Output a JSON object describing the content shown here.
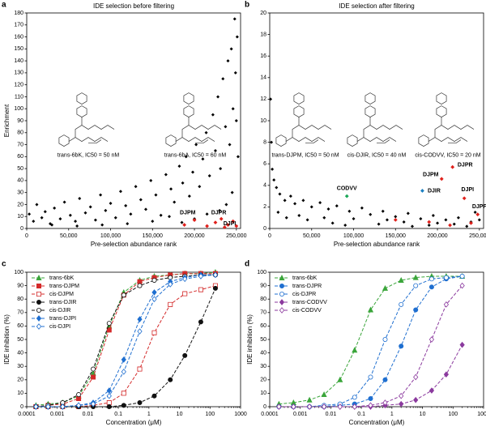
{
  "chart_data": [
    {
      "type": "scatter",
      "panel": "a",
      "title": "IDE selection before filtering",
      "xlabel": "Pre-selection abundance rank",
      "ylabel": "Enrichment",
      "xlim": [
        0,
        255000
      ],
      "ylim": [
        0,
        180
      ],
      "xticks": [
        0,
        {
          "value": 50000,
          "label": "50,000"
        },
        {
          "value": 100000,
          "label": "100,000"
        },
        {
          "value": 150000,
          "label": "150,000"
        },
        {
          "value": 200000,
          "label": "200,000"
        },
        {
          "value": 250000,
          "label": "250,000"
        }
      ],
      "yticks": [
        0,
        10,
        20,
        30,
        40,
        50,
        60,
        70,
        80,
        90,
        100,
        110,
        120,
        130,
        140,
        150,
        160,
        170,
        180
      ],
      "series": [
        {
          "color": "#000000",
          "x": [
            3000,
            8000,
            12000,
            18000,
            22000,
            28000,
            33000,
            40000,
            45000,
            52000,
            58000,
            63000,
            70000,
            76000,
            82000,
            88000,
            94000,
            100000,
            106000,
            112000,
            118000,
            124000,
            130000,
            136000,
            142000,
            148000,
            154000,
            160000,
            166000,
            172000,
            176000,
            182000,
            186000,
            190000,
            194000,
            198000,
            202000,
            206000,
            210000,
            214000,
            218000,
            222000,
            225000,
            228000,
            231000,
            234000,
            237000,
            240000,
            242000,
            244000,
            246000,
            248000,
            249000,
            250000,
            251000,
            252000,
            245000,
            238000,
            230000,
            215000,
            200000,
            185000,
            170000,
            150000,
            120000,
            90000,
            60000,
            30000
          ],
          "values": [
            12,
            6,
            20,
            9,
            14,
            4,
            17,
            8,
            22,
            11,
            6,
            25,
            13,
            18,
            7,
            28,
            15,
            21,
            9,
            31,
            19,
            12,
            35,
            24,
            16,
            40,
            28,
            11,
            45,
            33,
            22,
            52,
            38,
            60,
            27,
            47,
            70,
            35,
            58,
            80,
            44,
            95,
            65,
            110,
            50,
            125,
            85,
            140,
            70,
            150,
            100,
            175,
            130,
            90,
            160,
            60,
            30,
            20,
            15,
            12,
            8,
            5,
            10,
            6,
            4,
            3,
            2,
            3
          ]
        },
        {
          "color": "#e0201b",
          "x": [
            188000,
            200000,
            215000,
            225000,
            232000,
            240000,
            246000,
            250000,
            236000
          ],
          "values": [
            3,
            7,
            2,
            5,
            8,
            3,
            6,
            2,
            1
          ]
        }
      ],
      "annotations": [
        {
          "text": "DJPM",
          "x": 192000,
          "y": 13,
          "color": "#e0201b"
        },
        {
          "text": "DJPR",
          "x": 229000,
          "y": 13,
          "color": "#e0201b"
        },
        {
          "text": "DJPI",
          "x": 242000,
          "y": 4,
          "color": "#e0201b"
        }
      ],
      "compounds": [
        "trans-6bK, IC50 = 50 nM",
        "trans-6bA, IC50 = 60 nM"
      ]
    },
    {
      "type": "scatter",
      "panel": "b",
      "title": "IDE selection after filtering",
      "xlabel": "Pre-selection abundance rank",
      "ylabel": null,
      "xlim": [
        0,
        255000
      ],
      "ylim": [
        0,
        20
      ],
      "xticks": [
        0,
        {
          "value": 50000,
          "label": "50,000"
        },
        {
          "value": 100000,
          "label": "100,000"
        },
        {
          "value": 150000,
          "label": "150,000"
        },
        {
          "value": 200000,
          "label": "200,000"
        },
        {
          "value": 250000,
          "label": "250,000"
        }
      ],
      "yticks": [
        0,
        2,
        4,
        6,
        8,
        10,
        12,
        14,
        16,
        18,
        20
      ],
      "series": [
        {
          "color": "#000000",
          "x": [
            1000,
            2000,
            3000,
            5000,
            8000,
            12000,
            18000,
            25000,
            30000,
            40000,
            50000,
            60000,
            70000,
            80000,
            95000,
            110000,
            120000,
            135000,
            150000,
            165000,
            180000,
            195000,
            210000,
            225000,
            240000,
            250000,
            20000,
            45000,
            75000,
            100000,
            130000,
            160000,
            190000,
            220000,
            10000,
            35000,
            65000,
            90000,
            140000,
            170000,
            200000,
            235000,
            245000
          ],
          "values": [
            12,
            8,
            5.5,
            4.5,
            3.8,
            3.2,
            2.6,
            3.0,
            2.3,
            2.6,
            2.0,
            2.4,
            1.8,
            2.1,
            1.6,
            1.9,
            1.3,
            1.6,
            1.1,
            1.4,
            0.9,
            1.2,
            0.8,
            1.0,
            0.6,
            0.8,
            1.0,
            0.8,
            0.5,
            0.9,
            0.4,
            0.6,
            0.3,
            0.4,
            1.5,
            1.2,
            1.0,
            0.3,
            0.8,
            0.2,
            0.5,
            0.2,
            1.5
          ]
        },
        {
          "color": "#e0201b",
          "x": [
            205000,
            218000,
            232000,
            248000,
            150000,
            190000,
            215000,
            240000
          ],
          "values": [
            4.6,
            5.7,
            2.8,
            1.3,
            0.8,
            0.6,
            0.3,
            0.5
          ]
        },
        {
          "color": "#1aa657",
          "x": [
            92000
          ],
          "values": [
            3.0
          ]
        },
        {
          "color": "#1a7fc1",
          "x": [
            182000
          ],
          "values": [
            3.5
          ]
        }
      ],
      "annotations": [
        {
          "text": "CODVV",
          "x": 92000,
          "y": 3.7,
          "color": "#1aa657"
        },
        {
          "text": "DJIR",
          "x": 196000,
          "y": 3.5,
          "color": "#1a7fc1"
        },
        {
          "text": "DJPM",
          "x": 192000,
          "y": 5.0,
          "color": "#e0201b"
        },
        {
          "text": "DJPR",
          "x": 233000,
          "y": 5.9,
          "color": "#e0201b"
        },
        {
          "text": "DJPI",
          "x": 236000,
          "y": 3.6,
          "color": "#e0201b"
        },
        {
          "text": "DJPF",
          "x": 250000,
          "y": 2.0,
          "color": "#e0201b"
        }
      ],
      "compounds": [
        "trans-DJPM, IC50 = 50 nM",
        "cis-DJIR, IC50 = 40 nM",
        "cis-CODVV, IC50 = 20 nM"
      ]
    },
    {
      "type": "line",
      "panel": "c",
      "xlabel": "Concentration (μM)",
      "ylabel": "IDE inhibition (%)",
      "log_x": true,
      "legend": "upper left",
      "xlim": [
        0.0001,
        1000
      ],
      "ylim": [
        0,
        100
      ],
      "xticks": [
        0.0001,
        0.001,
        0.01,
        0.1,
        1,
        10,
        100,
        1000
      ],
      "yticks": [
        0,
        10,
        20,
        30,
        40,
        50,
        60,
        70,
        80,
        90,
        100
      ],
      "x": [
        0.0002,
        0.0005,
        0.0015,
        0.005,
        0.015,
        0.05,
        0.15,
        0.5,
        1.5,
        5,
        15,
        50,
        150
      ],
      "series": [
        {
          "name": "trans-6bK",
          "color": "#3aa53a",
          "marker": "triangle",
          "filled": true,
          "values": [
            1,
            2,
            3,
            8,
            25,
            60,
            85,
            94,
            97,
            98,
            99,
            99,
            100
          ]
        },
        {
          "name": "trans-DJPM",
          "color": "#d42a2a",
          "marker": "square",
          "filled": true,
          "values": [
            0,
            1,
            2,
            6,
            22,
            57,
            83,
            93,
            96,
            98,
            99,
            99,
            99
          ]
        },
        {
          "name": "cis-DJPM",
          "color": "#d42a2a",
          "marker": "square",
          "filled": false,
          "values": [
            0,
            0,
            0,
            0,
            1,
            3,
            10,
            28,
            55,
            76,
            84,
            87,
            90
          ]
        },
        {
          "name": "trans-DJIR",
          "color": "#111111",
          "marker": "circle",
          "filled": true,
          "values": [
            0,
            0,
            0,
            0,
            0,
            0,
            1,
            3,
            8,
            20,
            38,
            63,
            88
          ]
        },
        {
          "name": "cis-DJIR",
          "color": "#111111",
          "marker": "circle",
          "filled": false,
          "values": [
            0,
            1,
            3,
            9,
            28,
            62,
            83,
            90,
            94,
            96,
            97,
            98,
            98
          ]
        },
        {
          "name": "trans-DJPI",
          "color": "#1f6fd0",
          "marker": "diamond",
          "filled": true,
          "values": [
            0,
            0,
            0,
            1,
            3,
            12,
            35,
            65,
            85,
            93,
            96,
            98,
            98
          ]
        },
        {
          "name": "cis-DJPI",
          "color": "#1f6fd0",
          "marker": "diamond",
          "filled": false,
          "values": [
            0,
            0,
            0,
            1,
            2,
            8,
            26,
            56,
            80,
            91,
            95,
            97,
            98
          ]
        }
      ]
    },
    {
      "type": "line",
      "panel": "d",
      "xlabel": "Concentration (μM)",
      "ylabel": "IDE inhibition (%)",
      "log_x": true,
      "legend": "upper left",
      "xlim": [
        0.0001,
        1000
      ],
      "ylim": [
        0,
        100
      ],
      "xticks": [
        0.0001,
        0.001,
        0.01,
        0.1,
        1,
        10,
        100,
        1000
      ],
      "yticks": [
        0,
        10,
        20,
        30,
        40,
        50,
        60,
        70,
        80,
        90,
        100
      ],
      "x": [
        0.0002,
        0.0006,
        0.002,
        0.006,
        0.02,
        0.06,
        0.2,
        0.6,
        2,
        6,
        20,
        60,
        200
      ],
      "series": [
        {
          "name": "trans-6bK",
          "color": "#3aa53a",
          "marker": "triangle",
          "filled": true,
          "values": [
            2,
            3,
            5,
            9,
            20,
            42,
            72,
            88,
            94,
            96,
            97,
            97,
            97
          ]
        },
        {
          "name": "trans-DJPR",
          "color": "#1f6fd0",
          "marker": "circle",
          "filled": true,
          "values": [
            0,
            0,
            0,
            0,
            1,
            2,
            6,
            20,
            45,
            72,
            89,
            95,
            97
          ]
        },
        {
          "name": "cis-DJPR",
          "color": "#1f6fd0",
          "marker": "circle",
          "filled": false,
          "values": [
            0,
            0,
            0,
            1,
            2,
            7,
            22,
            50,
            76,
            90,
            95,
            96,
            97
          ]
        },
        {
          "name": "trans-CODVV",
          "color": "#8b3a9e",
          "marker": "diamond",
          "filled": true,
          "values": [
            0,
            0,
            0,
            0,
            0,
            0,
            0,
            1,
            2,
            5,
            12,
            24,
            46
          ]
        },
        {
          "name": "cis-CODVV",
          "color": "#8b3a9e",
          "marker": "diamond",
          "filled": false,
          "values": [
            0,
            0,
            0,
            0,
            0,
            0,
            1,
            3,
            8,
            22,
            50,
            76,
            90
          ]
        }
      ]
    }
  ]
}
